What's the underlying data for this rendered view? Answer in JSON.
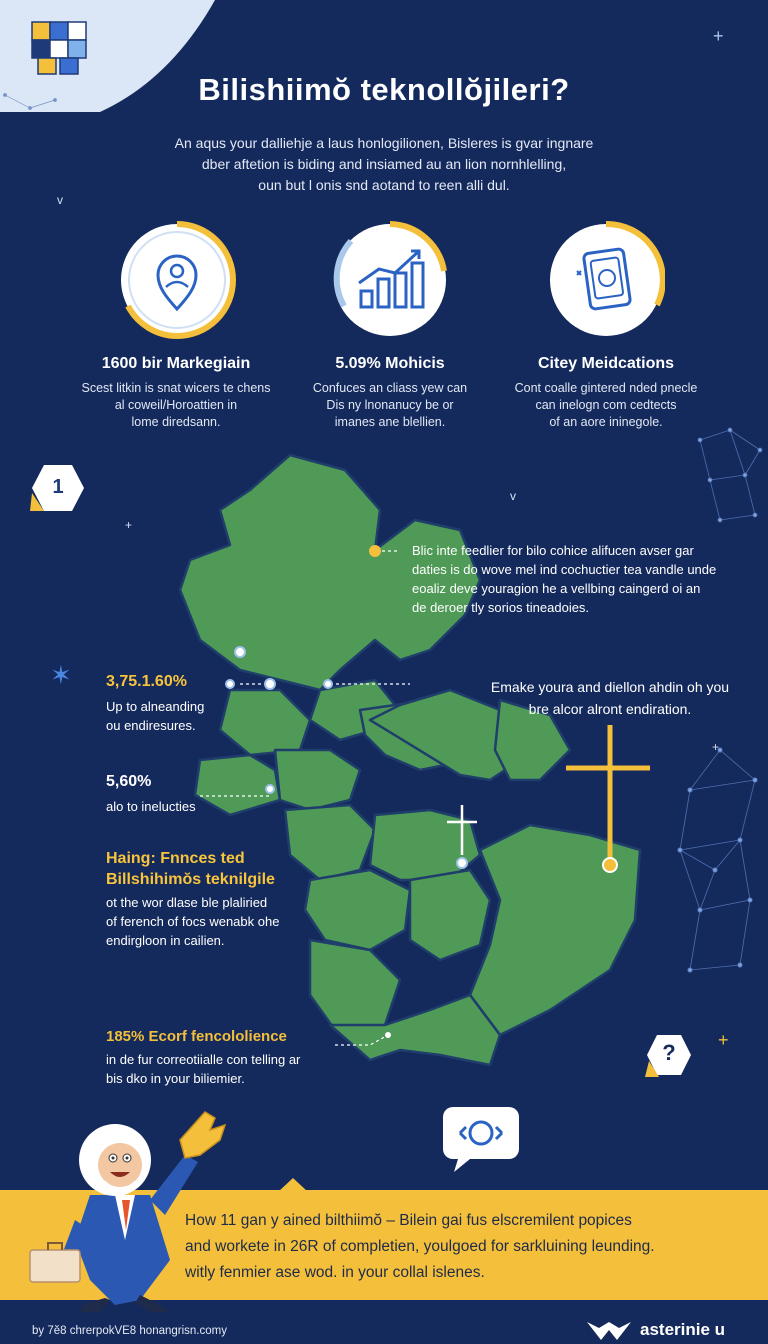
{
  "header": {
    "title": "Bilishiimŏ teknollŏjileri?",
    "intro": [
      "An aqus your dalliehje a laus honlogilionen, Bisleres is gvar ingnare",
      "dber aftetion is biding and insiamed au an lion nornhlelling,",
      "oun but l onis snd aotand to reen alli dul."
    ]
  },
  "stats": [
    {
      "title": "1600 bir Markegiain",
      "desc": [
        "Scest litkin is snat wicers te chens",
        "al coweil/Horoattien in",
        "lome diredsann."
      ],
      "icon": "person-location-icon"
    },
    {
      "title": "5.09% Mohicis",
      "desc": [
        "Confuces an cliass yew can",
        "Dis ny lnonanucy be or",
        "imanes ane blellien."
      ],
      "icon": "bar-chart-growth-icon"
    },
    {
      "title": "Citey Meidcations",
      "desc": [
        "Cont coalle gintered nded pnecle",
        "can inelogn com cedtects",
        "of an aore ininegole."
      ],
      "icon": "tablet-document-icon"
    }
  ],
  "badge_number": "1",
  "question_mark": "?",
  "map_annotations": {
    "top_right": [
      "Blic inte feedlier for bilo cohice alifucen avser gar",
      "daties is do wove mel ind cochuctier tea vandle unde",
      "eoaliz deve youragion he a vellbing caingerd oi an",
      "de deroer tly sorios tineadoies."
    ],
    "mid_right": [
      "Emake youra and diellon ahdin oh you",
      "bre alcor alront endiration."
    ],
    "left1_value": "3,75.1.60%",
    "left1_desc": [
      "Up to alneanding",
      "ou endiresures."
    ],
    "left2_value": "5,60%",
    "left2_desc": "alo to inelucties",
    "left3_head": [
      "Haing: Fnnces ted",
      "Billshihimŏs teknilgile"
    ],
    "left3_desc": [
      "ot the wor dlase ble plaliried",
      "of ferench of focs wenabk ohe",
      "endirgloon in cailien."
    ],
    "left4_value": "185% Ecorf fencololience",
    "left4_desc": [
      "in de fur correotiialle con telling ar",
      "bis dko in your biliemier."
    ]
  },
  "banner": {
    "lines": [
      "How 11 gan y ained bilthiimŏ – Bilein gai fus elscremilent popices",
      "and workete in 26R of completien, youlgoed for sarkluining leunding.",
      "witly fenmier ase wod. in your collal islenes."
    ]
  },
  "footer": {
    "left": "by 7ĕ8 chrerpokVE8 honangrisn.comy",
    "right": "asterinie u"
  },
  "colors": {
    "background": "#152a5c",
    "accent_yellow": "#f4bf3a",
    "map_green": "#4f9a57",
    "light_blue": "#a9c8ea"
  }
}
